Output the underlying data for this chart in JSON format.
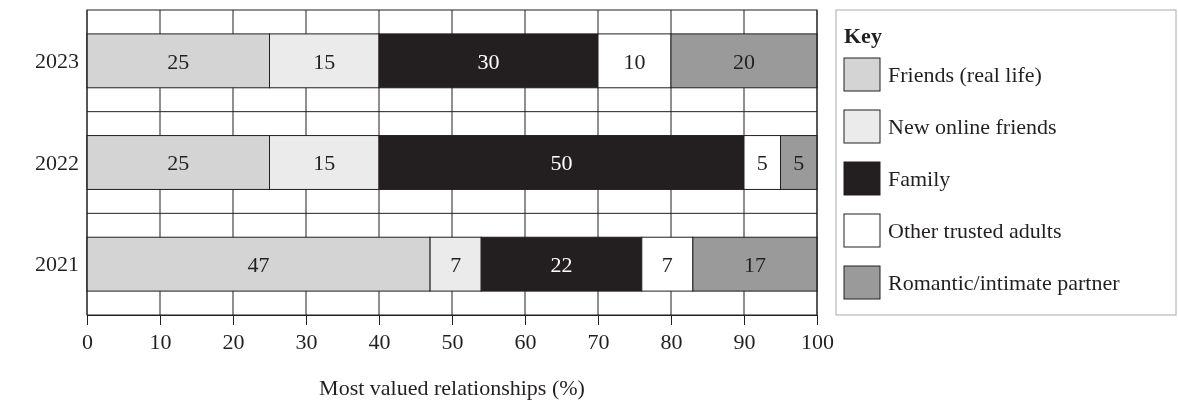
{
  "chart_data": {
    "type": "bar",
    "orientation": "horizontal",
    "stacked": true,
    "xlabel": "Most valued relationships (%)",
    "legend_title": "Key",
    "categories": [
      "2023",
      "2022",
      "2021"
    ],
    "xlim": [
      0,
      100
    ],
    "xticks": [
      0,
      10,
      20,
      30,
      40,
      50,
      60,
      70,
      80,
      90,
      100
    ],
    "grid": true,
    "legend": "right",
    "data_labels": true,
    "series": [
      {
        "name": "Friends (real life)",
        "color": "#d4d4d4",
        "values": [
          25,
          25,
          47
        ]
      },
      {
        "name": "New online friends",
        "color": "#ebebeb",
        "values": [
          15,
          15,
          7
        ]
      },
      {
        "name": "Family",
        "color": "#231f20",
        "values": [
          30,
          50,
          22
        ]
      },
      {
        "name": "Other trusted adults",
        "color": "#ffffff",
        "values": [
          10,
          5,
          7
        ]
      },
      {
        "name": "Romantic/intimate partner",
        "color": "#9a9a9a",
        "values": [
          20,
          5,
          17
        ]
      }
    ]
  }
}
